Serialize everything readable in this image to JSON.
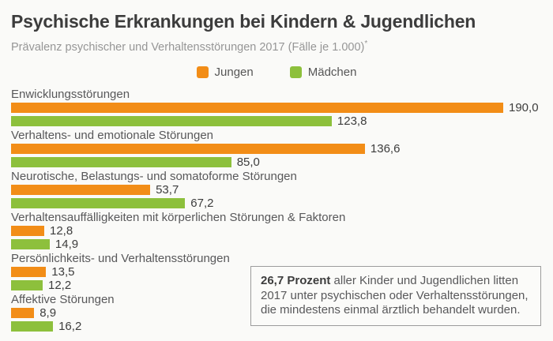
{
  "header": {
    "title": "Psychische Erkrankungen bei Kindern & Jugendlichen",
    "subtitle": "Prävalenz psychischer und Verhaltensstörungen 2017 (Fälle je 1.000)",
    "footnote_marker": "*"
  },
  "legend": {
    "items": [
      {
        "label": "Jungen",
        "color": "#F28D17"
      },
      {
        "label": "Mädchen",
        "color": "#8DC03C"
      }
    ]
  },
  "chart_data": {
    "type": "bar",
    "orientation": "horizontal",
    "title": "Psychische Erkrankungen bei Kindern & Jugendlichen",
    "subtitle": "Prävalenz psychischer und Verhaltensstörungen 2017 (Fälle je 1.000)*",
    "categories": [
      "Enwicklungsstörungen",
      "Verhaltens- und emotionale Störungen",
      "Neurotische, Belastungs- und somatoforme Störungen",
      "Verhaltensauffälligkeiten mit körperlichen Störungen & Faktoren",
      "Persönlichkeits- und Verhaltensstörungen",
      "Affektive Störungen"
    ],
    "series": [
      {
        "name": "Jungen",
        "color": "#F28D17",
        "values": [
          190.0,
          136.6,
          53.7,
          12.8,
          13.5,
          8.9
        ],
        "labels": [
          "190,0",
          "136,6",
          "53,7",
          "12,8",
          "13,5",
          "8,9"
        ]
      },
      {
        "name": "Mädchen",
        "color": "#8DC03C",
        "values": [
          123.8,
          85.0,
          67.2,
          14.9,
          12.2,
          16.2
        ],
        "labels": [
          "123,8",
          "85,0",
          "67,2",
          "14,9",
          "12,2",
          "16,2"
        ]
      }
    ],
    "xlim": [
      0,
      190
    ],
    "value_format": "german-decimal-comma",
    "grid": false,
    "legend_position": "top-center"
  },
  "callout": {
    "highlight": "26,7 Prozent",
    "text": " aller Kinder und Jugendlichen litten 2017 unter psychischen oder Verhaltensstörungen, die mindestens einmal ärztlich behandelt wurden."
  },
  "colors": {
    "background": "#FAFAF8",
    "title": "#3C3C3C",
    "subtitle": "#969696",
    "category_label": "#58585A",
    "value_label": "#3D3D3D",
    "callout_border": "#9C9C9C",
    "jungen": "#F28D17",
    "maedchen": "#8DC03C"
  }
}
